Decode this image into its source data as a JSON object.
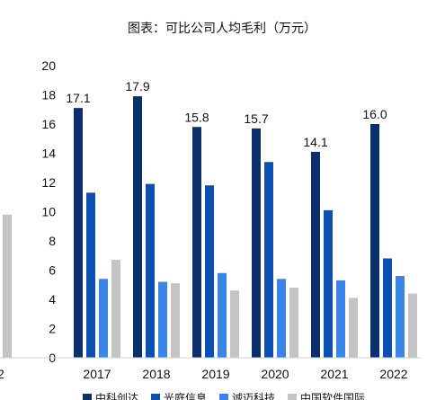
{
  "chart_data": {
    "type": "bar",
    "title": "图表：可比公司人均毛利（万元）",
    "categories": [
      "2017",
      "2018",
      "2019",
      "2020",
      "2021",
      "2022"
    ],
    "ylim": [
      0,
      20
    ],
    "yticks": [
      0,
      2,
      4,
      6,
      8,
      10,
      12,
      14,
      16,
      18,
      20
    ],
    "grid": false,
    "legend_position": "bottom",
    "series": [
      {
        "name": "中科创达",
        "color": "#0b2f6b",
        "values": [
          17.1,
          17.9,
          15.8,
          15.7,
          14.1,
          16.0
        ],
        "labels": [
          "17.1",
          "17.9",
          "15.8",
          "15.7",
          "14.1",
          "16.0"
        ]
      },
      {
        "name": "光庭信息",
        "color": "#0b4fb0",
        "values": [
          11.3,
          11.9,
          11.8,
          13.4,
          10.1,
          6.8
        ]
      },
      {
        "name": "诚迈科技",
        "color": "#3a86e8",
        "values": [
          5.4,
          5.2,
          5.8,
          5.4,
          5.3,
          5.6
        ]
      },
      {
        "name": "中国软件国际",
        "color": "#c4c4c4",
        "values": [
          6.7,
          5.1,
          4.6,
          4.8,
          4.1,
          4.4
        ]
      }
    ],
    "partial_left": {
      "value": 9.8,
      "tick_label": "2"
    }
  }
}
